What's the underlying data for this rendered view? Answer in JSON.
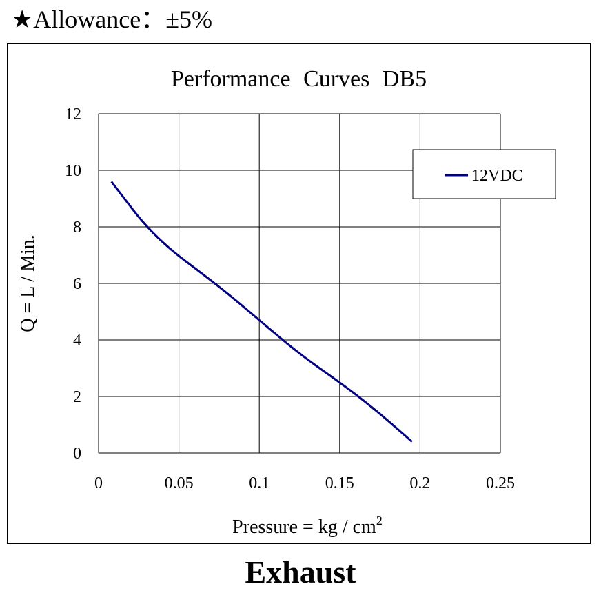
{
  "header": {
    "allowance_label": "Allowance：±5%"
  },
  "footer": {
    "caption": "Exhaust"
  },
  "chart_data": {
    "type": "line",
    "title": "Performance  Curves  DB5",
    "xlabel": "Pressure = kg / cm",
    "xlabel_superscript": "2",
    "ylabel": "Q = L / Min.",
    "xlim": [
      0,
      0.25
    ],
    "ylim": [
      0,
      12
    ],
    "x_ticks": [
      0,
      0.05,
      0.1,
      0.15,
      0.2,
      0.25
    ],
    "x_tick_labels": [
      "0",
      "0.05",
      "0.1",
      "0.15",
      "0.2",
      "0.25"
    ],
    "y_ticks": [
      0,
      2,
      4,
      6,
      8,
      10,
      12
    ],
    "y_tick_labels": [
      "0",
      "2",
      "4",
      "6",
      "8",
      "10",
      "12"
    ],
    "grid": true,
    "legend_position": "top-right",
    "series": [
      {
        "name": "12VDC",
        "color": "#000080",
        "x": [
          0.008,
          0.035,
          0.075,
          0.1,
          0.125,
          0.155,
          0.175,
          0.195
        ],
        "y": [
          9.6,
          7.6,
          5.9,
          4.7,
          3.5,
          2.3,
          1.4,
          0.4
        ]
      }
    ]
  }
}
